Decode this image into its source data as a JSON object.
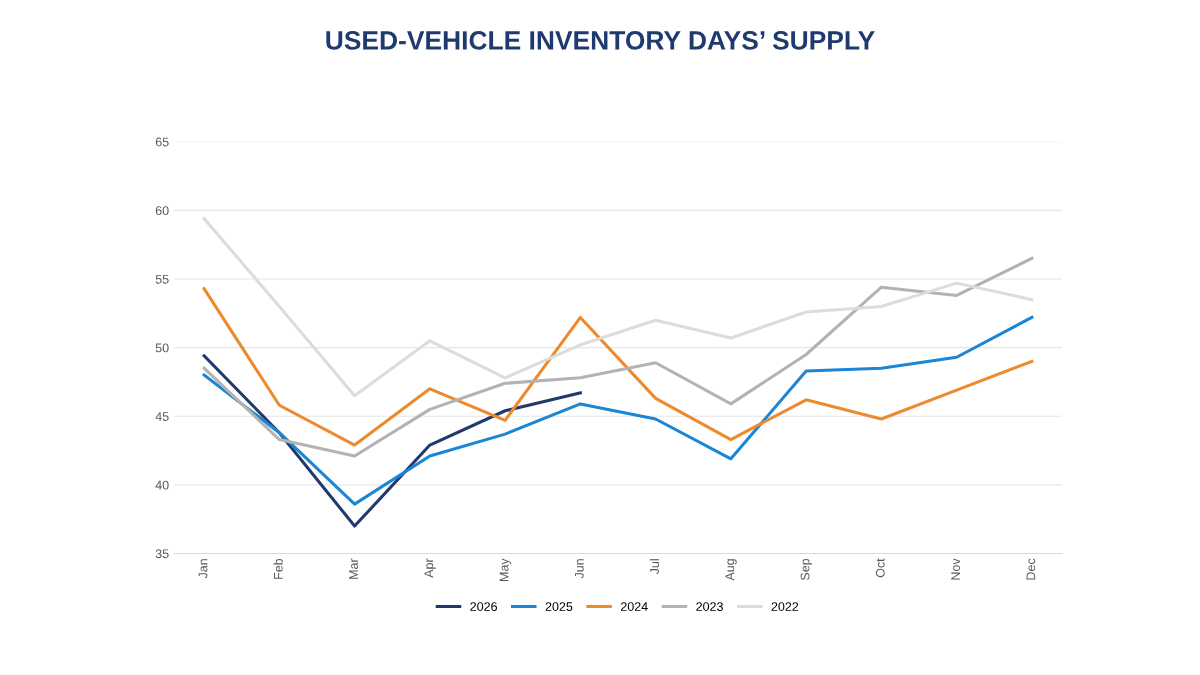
{
  "chart_data": {
    "type": "line",
    "title": "USED-VEHICLE INVENTORY DAYS’ SUPPLY",
    "categories": [
      "Jan",
      "Feb",
      "Mar",
      "Apr",
      "May",
      "Jun",
      "Jul",
      "Aug",
      "Sep",
      "Oct",
      "Nov",
      "Dec"
    ],
    "series": [
      {
        "name": "2026",
        "color": "#223a6b",
        "values": [
          49.4,
          43.8,
          37.0,
          42.9,
          45.4,
          46.7,
          null,
          null,
          null,
          null,
          null,
          null
        ]
      },
      {
        "name": "2025",
        "color": "#1b86d6",
        "values": [
          48.0,
          43.8,
          38.6,
          42.1,
          43.7,
          45.9,
          44.8,
          41.9,
          48.3,
          48.5,
          49.3,
          52.2
        ]
      },
      {
        "name": "2024",
        "color": "#ee8a2e",
        "values": [
          54.3,
          45.8,
          42.9,
          47.0,
          44.7,
          52.2,
          46.3,
          43.3,
          46.2,
          44.8,
          46.9,
          49.0
        ]
      },
      {
        "name": "2023",
        "color": "#b3b3b3",
        "values": [
          48.5,
          43.3,
          42.1,
          45.5,
          47.4,
          47.8,
          48.9,
          45.9,
          49.5,
          54.4,
          53.8,
          56.5
        ]
      },
      {
        "name": "2022",
        "color": "#dcdcdc",
        "values": [
          59.4,
          53.0,
          46.5,
          50.5,
          47.8,
          50.2,
          52.0,
          50.7,
          52.6,
          53.0,
          54.7,
          53.5
        ]
      }
    ],
    "ylim": [
      35,
      65
    ],
    "yticks": [
      35,
      40,
      45,
      50,
      55,
      60,
      65
    ],
    "grid": "y",
    "legend": "bottom",
    "marker": "none",
    "line_style": "solid"
  }
}
